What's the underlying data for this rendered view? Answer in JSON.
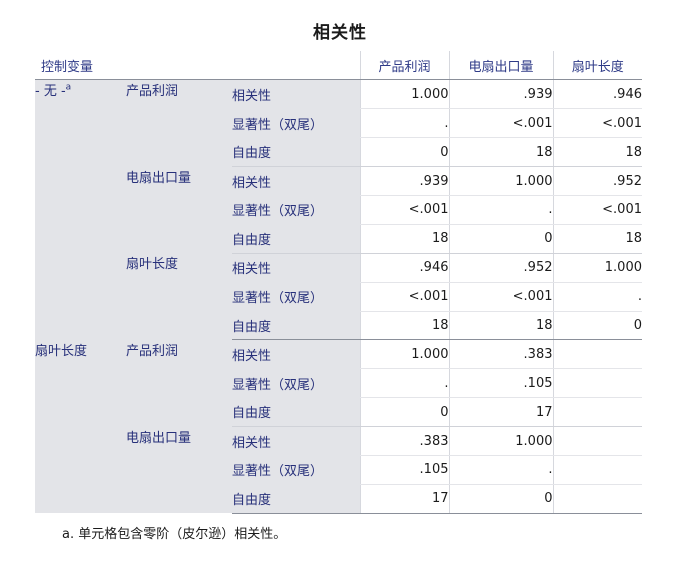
{
  "title": "相关性",
  "header": {
    "control_var": "控制变量",
    "columns": [
      "产品利润",
      "电扇出口量",
      "扇叶长度"
    ]
  },
  "stat_labels": {
    "corr": "相关性",
    "sig": "显著性（双尾）",
    "df": "自由度"
  },
  "groups": [
    {
      "control": "- 无 -",
      "control_sup": "a",
      "rows": [
        {
          "var": "产品利润",
          "corr": [
            "1.000",
            ".939",
            ".946"
          ],
          "sig": [
            ".",
            "<.001",
            "<.001"
          ],
          "df": [
            "0",
            "18",
            "18"
          ]
        },
        {
          "var": "电扇出口量",
          "corr": [
            ".939",
            "1.000",
            ".952"
          ],
          "sig": [
            "<.001",
            ".",
            "<.001"
          ],
          "df": [
            "18",
            "0",
            "18"
          ]
        },
        {
          "var": "扇叶长度",
          "corr": [
            ".946",
            ".952",
            "1.000"
          ],
          "sig": [
            "<.001",
            "<.001",
            "."
          ],
          "df": [
            "18",
            "18",
            "0"
          ]
        }
      ]
    },
    {
      "control": "扇叶长度",
      "rows": [
        {
          "var": "产品利润",
          "corr": [
            "1.000",
            ".383",
            ""
          ],
          "sig": [
            ".",
            ".105",
            ""
          ],
          "df": [
            "0",
            "17",
            ""
          ]
        },
        {
          "var": "电扇出口量",
          "corr": [
            ".383",
            "1.000",
            ""
          ],
          "sig": [
            ".105",
            ".",
            ""
          ],
          "df": [
            "17",
            "0",
            ""
          ]
        }
      ]
    }
  ],
  "footnote": "a. 单元格包含零阶（皮尔逊）相关性。"
}
